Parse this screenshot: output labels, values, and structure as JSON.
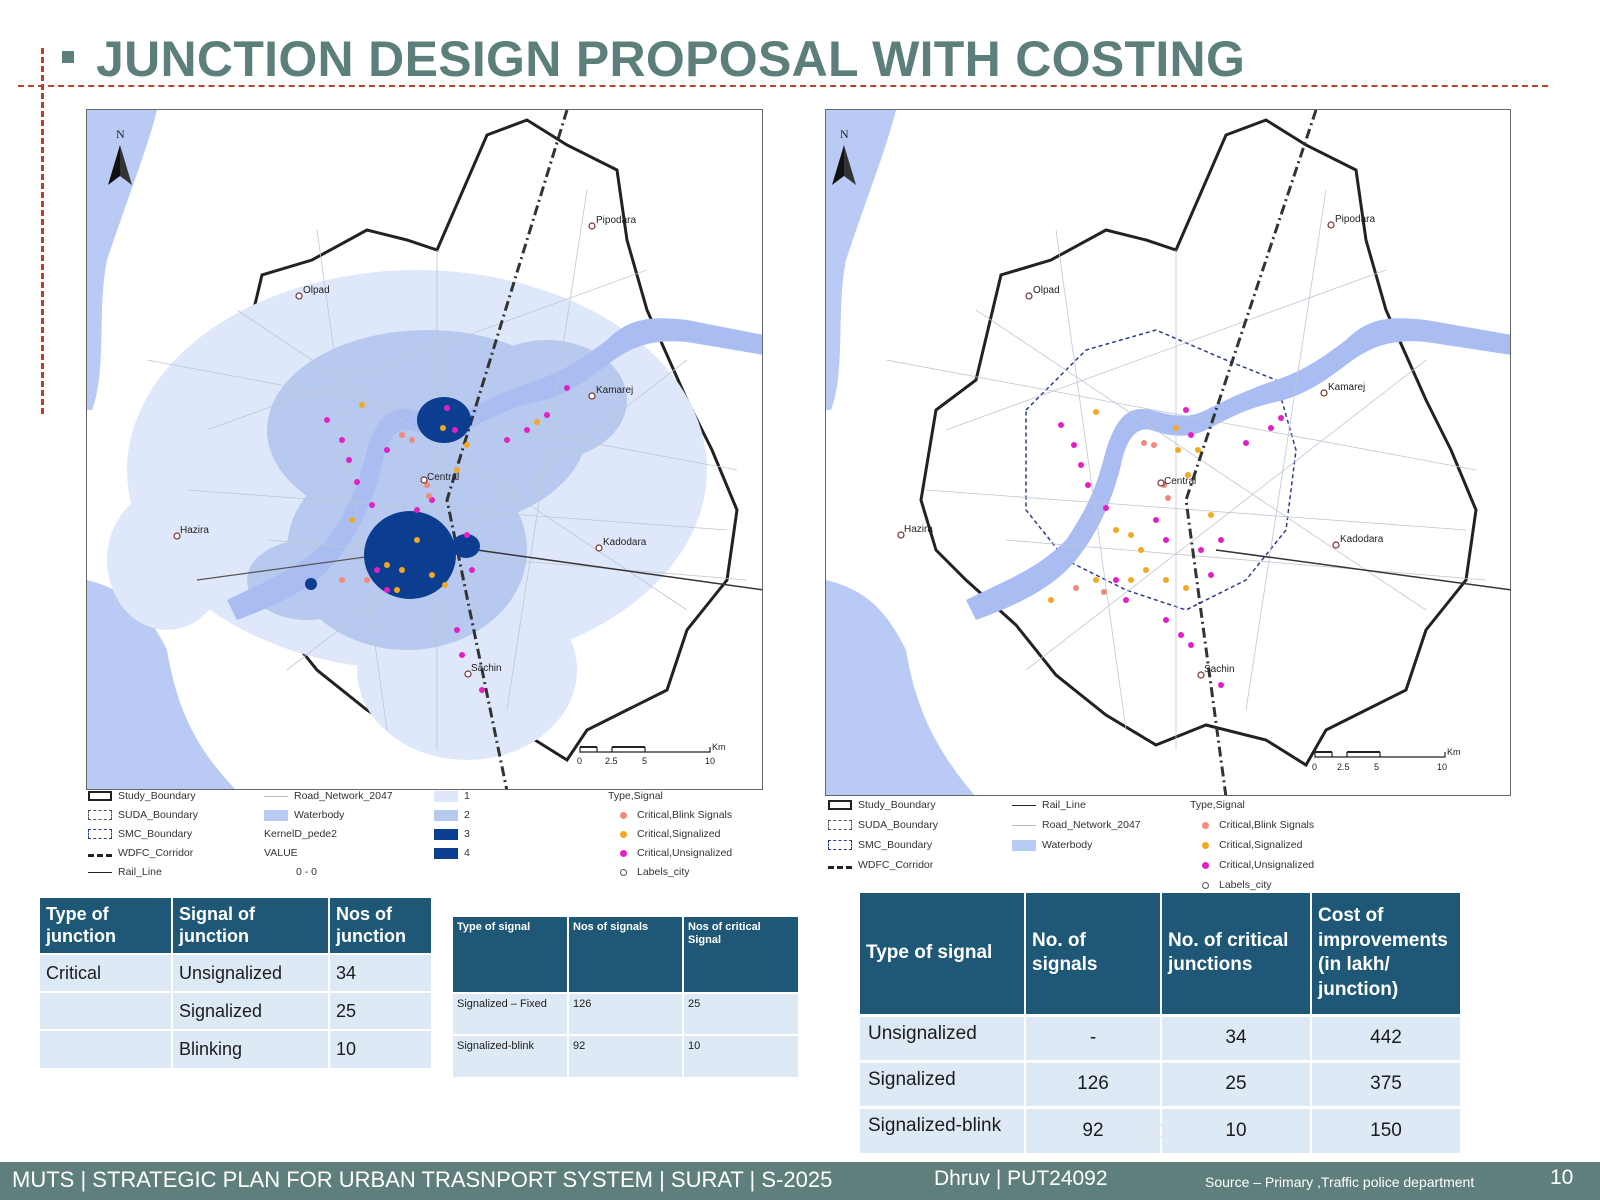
{
  "title": "JUNCTION DESIGN PROPOSAL WITH COSTING",
  "map_labels": {
    "north": "N",
    "pipodara": "Pipodara",
    "olpad": "Olpad",
    "kamarej": "Kamarej",
    "central": "Central",
    "hazira": "Hazira",
    "kadodara": "Kadodara",
    "sachin": "Sachin"
  },
  "scale_bar": {
    "unit": "Km",
    "ticks": [
      "0",
      "2.5",
      "5",
      "10"
    ]
  },
  "left_legend": {
    "study_boundary": "Study_Boundary",
    "suda_boundary": "SUDA_Boundary",
    "smc_boundary": "SMC_Boundary",
    "wdfc_corridor": "WDFC_Corridor",
    "rail_line": "Rail_Line",
    "road_network": "Road_Network_2047",
    "waterbody": "Waterbody",
    "kernel_title": "KernelD_pede2",
    "value_title": "VALUE",
    "value_range": "0 - 0",
    "class1": "1",
    "class2": "2",
    "class3": "3",
    "class4": "4",
    "type_signal": "Type,Signal",
    "blink": "Critical,Blink Signals",
    "signalized": "Critical,Signalized",
    "unsignalized": "Critical,Unsignalized",
    "labels_city": "Labels_city"
  },
  "right_legend": {
    "study_boundary": "Study_Boundary",
    "suda_boundary": "SUDA_Boundary",
    "smc_boundary": "SMC_Boundary",
    "wdfc_corridor": "WDFC_Corridor",
    "rail_line": "Rail_Line",
    "road_network": "Road_Network_2047",
    "waterbody": "Waterbody",
    "type_signal": "Type,Signal",
    "blink": "Critical,Blink Signals",
    "signalized": "Critical,Signalized",
    "unsignalized": "Critical,Unsignalized",
    "labels_city": "Labels_city"
  },
  "colors": {
    "blink": "#f08a7a",
    "signalized": "#f2a922",
    "unsignalized": "#e41fc4",
    "water": "#b9cbf5",
    "kernel1": "#dfe7fa",
    "kernel2": "#b8c9f0",
    "kernel4": "#0b3d91",
    "header": "#1f5877",
    "cell": "#dde9f5",
    "title": "#5c7f7b"
  },
  "table1": {
    "headers": [
      "Type of junction",
      "Signal of junction",
      "Nos of junction"
    ],
    "rows": [
      [
        "Critical",
        "Unsignalized",
        "34"
      ],
      [
        "",
        "Signalized",
        "25"
      ],
      [
        "",
        "Blinking",
        "10"
      ]
    ]
  },
  "table2": {
    "headers": [
      "Type of signal",
      "Nos of signals",
      "Nos of critical Signal"
    ],
    "rows": [
      [
        "Signalized – Fixed",
        "126",
        "25"
      ],
      [
        "Signalized-blink",
        "92",
        "10"
      ]
    ]
  },
  "table3": {
    "headers": [
      "Type of signal",
      "No. of signals",
      "No. of critical junctions",
      "Cost of improvements (in lakh/ junction)"
    ],
    "rows": [
      [
        "Unsignalized",
        "-",
        "34",
        "442"
      ],
      [
        "Signalized",
        "126",
        "25",
        "375"
      ],
      [
        "Signalized-blink",
        "92",
        "10",
        "150"
      ]
    ]
  },
  "ghost_number": "10",
  "footer": {
    "left": "MUTS | STRATEGIC PLAN FOR URBAN TRASNPORT SYSTEM | SURAT | S-2025",
    "author": "Dhruv | PUT24092",
    "source": "Source – Primary ,Traffic police department",
    "page": "10"
  }
}
